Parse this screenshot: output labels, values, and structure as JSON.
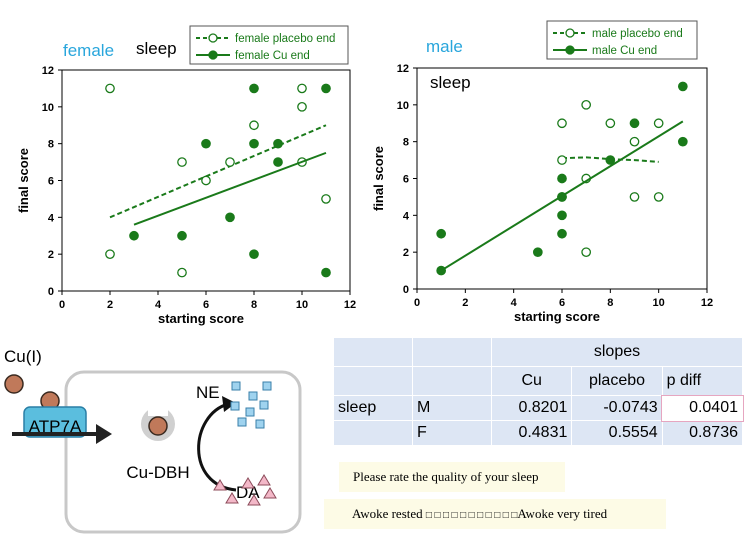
{
  "chart_data": [
    {
      "type": "scatter",
      "title_parts": [
        "female",
        "sleep"
      ],
      "xlabel": "starting score",
      "ylabel": "final score",
      "xlim": [
        0,
        12
      ],
      "ylim": [
        0,
        12
      ],
      "xticks": [
        "0",
        "2",
        "4",
        "6",
        "8",
        "10",
        "12"
      ],
      "yticks": [
        "0",
        "2",
        "4",
        "6",
        "8",
        "10",
        "12"
      ],
      "legend_position": "top-right",
      "series": [
        {
          "name": "female placebo end",
          "marker": "open-circle",
          "line": "dashed",
          "color": "#1a7a1a",
          "points": [
            [
              2,
              11
            ],
            [
              2,
              2
            ],
            [
              5,
              7
            ],
            [
              5,
              1
            ],
            [
              6,
              6
            ],
            [
              7,
              7
            ],
            [
              8,
              9
            ],
            [
              10,
              11
            ],
            [
              10,
              10
            ],
            [
              10,
              7
            ],
            [
              11,
              5
            ]
          ],
          "fit": [
            [
              2,
              4.0
            ],
            [
              11,
              9.0
            ]
          ]
        },
        {
          "name": "female Cu end",
          "marker": "filled-circle",
          "line": "solid",
          "color": "#1a7a1a",
          "points": [
            [
              3,
              3
            ],
            [
              5,
              3
            ],
            [
              6,
              8
            ],
            [
              7,
              4
            ],
            [
              8,
              11
            ],
            [
              8,
              8
            ],
            [
              8,
              2
            ],
            [
              9,
              8
            ],
            [
              9,
              7
            ],
            [
              11,
              11
            ],
            [
              11,
              1
            ]
          ],
          "fit": [
            [
              3,
              3.6
            ],
            [
              11,
              7.5
            ]
          ]
        }
      ]
    },
    {
      "type": "scatter",
      "title_parts": [
        "male",
        "sleep"
      ],
      "xlabel": "starting score",
      "ylabel": "final score",
      "xlim": [
        0,
        12
      ],
      "ylim": [
        0,
        12
      ],
      "xticks": [
        "0",
        "2",
        "4",
        "6",
        "8",
        "10",
        "12"
      ],
      "yticks": [
        "0",
        "2",
        "4",
        "6",
        "8",
        "10",
        "12"
      ],
      "legend_position": "top-right",
      "series": [
        {
          "name": "male placebo end",
          "marker": "open-circle",
          "line": "dashed",
          "color": "#1a7a1a",
          "points": [
            [
              6,
              9
            ],
            [
              6,
              7
            ],
            [
              6,
              5
            ],
            [
              7,
              10
            ],
            [
              7,
              6
            ],
            [
              7,
              2
            ],
            [
              8,
              9
            ],
            [
              9,
              8
            ],
            [
              9,
              5
            ],
            [
              10,
              9
            ],
            [
              10,
              5
            ]
          ],
          "fit": [
            [
              6,
              7.1
            ],
            [
              7,
              7.15
            ],
            [
              8,
              7.05
            ],
            [
              9,
              7.0
            ],
            [
              10,
              6.9
            ]
          ]
        },
        {
          "name": "male Cu end",
          "marker": "filled-circle",
          "line": "solid",
          "color": "#1a7a1a",
          "points": [
            [
              1,
              3
            ],
            [
              1,
              1
            ],
            [
              5,
              2
            ],
            [
              6,
              6
            ],
            [
              6,
              5
            ],
            [
              6,
              4
            ],
            [
              6,
              3
            ],
            [
              8,
              7
            ],
            [
              9,
              9
            ],
            [
              11,
              11
            ],
            [
              11,
              8
            ]
          ],
          "fit": [
            [
              1,
              1.0
            ],
            [
              11,
              9.1
            ]
          ]
        }
      ]
    }
  ],
  "table": {
    "header_group": "slopes",
    "columns": [
      "Cu",
      "placebo",
      "p diff"
    ],
    "row_group": "sleep",
    "rows": [
      {
        "label": "M",
        "cu": "0.8201",
        "placebo": "-0.0743",
        "pdiff": "0.0401"
      },
      {
        "label": "F",
        "cu": "0.4831",
        "placebo": "0.5554",
        "pdiff": "0.8736"
      }
    ]
  },
  "diagram": {
    "ion_label": "Cu(I)",
    "transporter_label": "ATP7A",
    "enzyme_label": "Cu-DBH",
    "product_label": "NE",
    "substrate_label": "DA"
  },
  "survey": {
    "question": "Please rate the quality of your sleep",
    "left_anchor": "Awoke rested",
    "boxes": "□ □ □ □ □ □ □ □ □ □ □",
    "right_anchor": "Awoke very tired"
  },
  "colors": {
    "series_green": "#1a7a1a",
    "female_title": "#29a6dc",
    "male_title": "#29a6dc",
    "table_bg": "#dde6f4"
  }
}
